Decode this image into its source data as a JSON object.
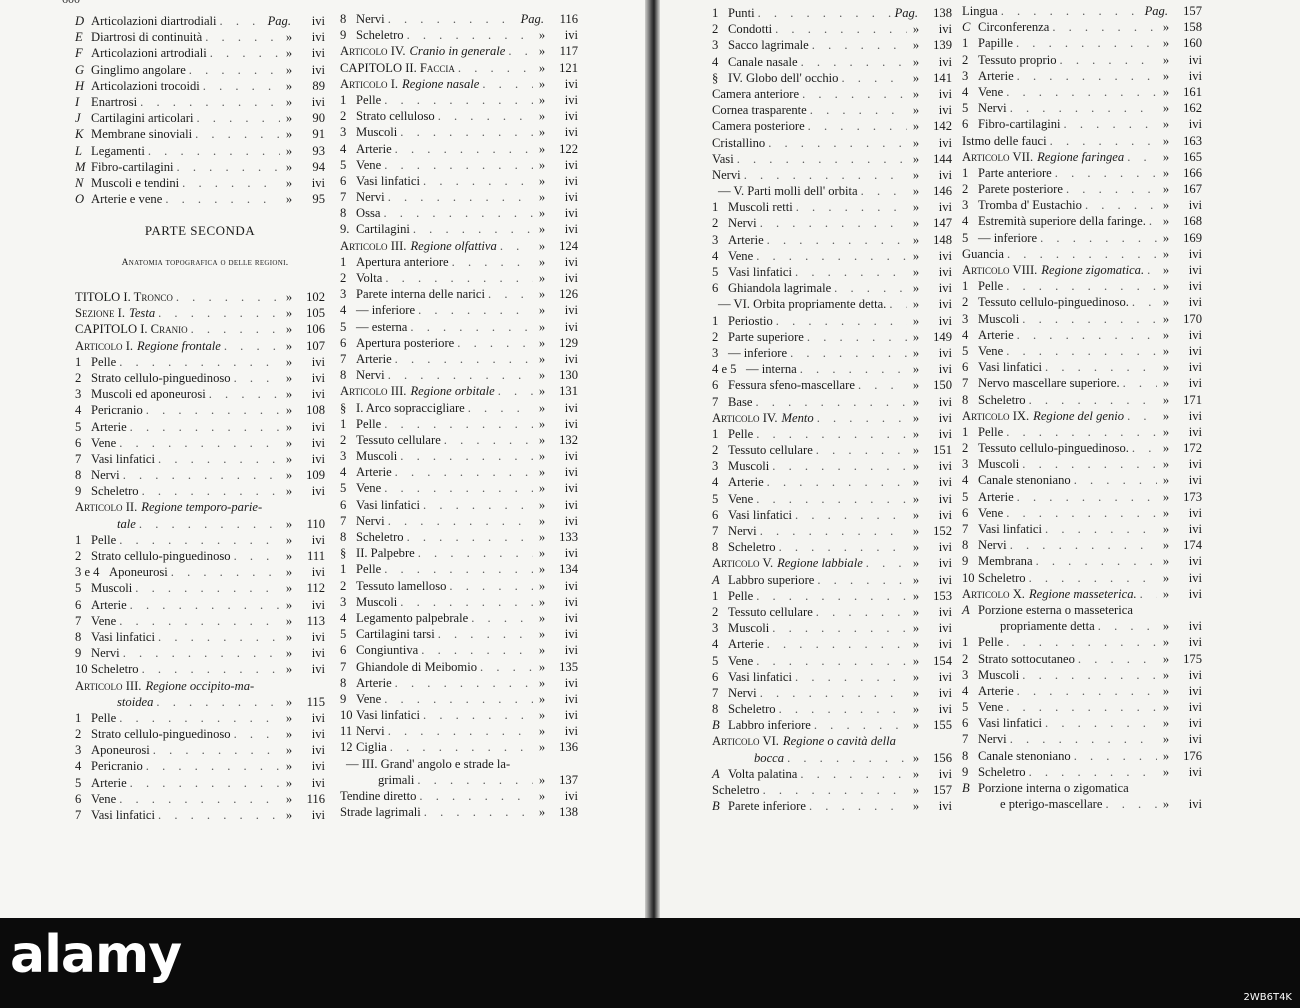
{
  "ditto_mark": "»",
  "left_page": {
    "running_number": "600",
    "part_title": "PARTE SECONDA",
    "part_subtitle": "Anatomia topografica o delle regioni.",
    "col1_top": [
      {
        "n": "D",
        "t": "Articolazioni diartrodiali",
        "pre": "Pag.",
        "p": "ivi"
      },
      {
        "n": "E",
        "t": "Diartrosi di continuità",
        "p": "ivi"
      },
      {
        "n": "F",
        "t": "Articolazioni artrodiali",
        "p": "ivi"
      },
      {
        "n": "G",
        "t": "Ginglimo angolare",
        "p": "ivi"
      },
      {
        "n": "H",
        "t": "Articolazioni trocoidi",
        "p": "89"
      },
      {
        "n": "I",
        "t": "Enartrosi",
        "p": "ivi"
      },
      {
        "n": "J",
        "t": "Cartilagini articolari",
        "p": "90"
      },
      {
        "n": "K",
        "t": "Membrane sinoviali",
        "p": "91"
      },
      {
        "n": "L",
        "t": "Legamenti",
        "p": "93"
      },
      {
        "n": "M",
        "t": "Fibro-cartilagini",
        "p": "94"
      },
      {
        "n": "N",
        "t": "Muscoli e tendini",
        "p": "ivi"
      },
      {
        "n": "O",
        "t": "Arterie e vene",
        "p": "95"
      }
    ],
    "col1_bottom": [
      {
        "k": "a",
        "t": "TITOLO I. Tronco",
        "p": "102"
      },
      {
        "k": "a",
        "t": "Sezione I.",
        "i": "Testa",
        "p": "105"
      },
      {
        "k": "a",
        "t": "CAPITOLO I. Cranio",
        "p": "106"
      },
      {
        "k": "a",
        "t": "Articolo I.",
        "i": "Regione frontale",
        "p": "107"
      },
      {
        "n": "1",
        "t": "Pelle",
        "p": "ivi"
      },
      {
        "n": "2",
        "t": "Strato cellulo-pinguedinoso",
        "p": "ivi"
      },
      {
        "n": "3",
        "t": "Muscoli ed aponeurosi",
        "p": "ivi"
      },
      {
        "n": "4",
        "t": "Pericranio",
        "p": "108"
      },
      {
        "n": "5",
        "t": "Arterie",
        "p": "ivi"
      },
      {
        "n": "6",
        "t": "Vene",
        "p": "ivi"
      },
      {
        "n": "7",
        "t": "Vasi linfatici",
        "p": "ivi"
      },
      {
        "n": "8",
        "t": "Nervi",
        "p": "109"
      },
      {
        "n": "9",
        "t": "Scheletro",
        "p": "ivi"
      },
      {
        "k": "a",
        "t": "Articolo II.",
        "i": "Regione temporo-parie-"
      },
      {
        "k": "c",
        "i": "tale",
        "p": "110"
      },
      {
        "n": "1",
        "t": "Pelle",
        "p": "ivi"
      },
      {
        "n": "2",
        "t": "Strato cellulo-pinguedinoso",
        "p": "111"
      },
      {
        "n": "3 e 4",
        "t": "Aponeurosi",
        "p": "ivi"
      },
      {
        "n": "5",
        "t": "Muscoli",
        "p": "112"
      },
      {
        "n": "6",
        "t": "Arterie",
        "p": "ivi"
      },
      {
        "n": "7",
        "t": "Vene",
        "p": "113"
      },
      {
        "n": "8",
        "t": "Vasi linfatici",
        "p": "ivi"
      },
      {
        "n": "9",
        "t": "Nervi",
        "p": "ivi"
      },
      {
        "n": "10",
        "t": "Scheletro",
        "p": "ivi"
      },
      {
        "k": "a",
        "t": "Articolo III.",
        "i": "Regione occipito-ma-"
      },
      {
        "k": "c",
        "i": "stoidea",
        "p": "115"
      },
      {
        "n": "1",
        "t": "Pelle",
        "p": "ivi"
      },
      {
        "n": "2",
        "t": "Strato cellulo-pinguedinoso",
        "p": "ivi"
      },
      {
        "n": "3",
        "t": "Aponeurosi",
        "p": "ivi"
      },
      {
        "n": "4",
        "t": "Pericranio",
        "p": "ivi"
      },
      {
        "n": "5",
        "t": "Arterie",
        "p": "ivi"
      },
      {
        "n": "6",
        "t": "Vene",
        "p": "116"
      },
      {
        "n": "7",
        "t": "Vasi linfatici",
        "p": "ivi"
      }
    ],
    "col2": [
      {
        "n": "8",
        "t": "Nervi",
        "pre": "Pag.",
        "p": "116"
      },
      {
        "n": "9",
        "t": "Scheletro",
        "p": "ivi"
      },
      {
        "k": "a",
        "t": "Articolo IV.",
        "i": "Cranio in generale",
        "p": "117"
      },
      {
        "k": "a",
        "t": "CAPITOLO II. Faccia",
        "p": "121"
      },
      {
        "k": "a",
        "t": "Articolo I.",
        "i": "Regione nasale",
        "p": "ivi"
      },
      {
        "n": "1",
        "t": "Pelle",
        "p": "ivi"
      },
      {
        "n": "2",
        "t": "Strato celluloso",
        "p": "ivi"
      },
      {
        "n": "3",
        "t": "Muscoli",
        "p": "ivi"
      },
      {
        "n": "4",
        "t": "Arterie",
        "p": "122"
      },
      {
        "n": "5",
        "t": "Vene",
        "p": "ivi"
      },
      {
        "n": "6",
        "t": "Vasi linfatici",
        "p": "ivi"
      },
      {
        "n": "7",
        "t": "Nervi",
        "p": "ivi"
      },
      {
        "n": "8",
        "t": "Ossa",
        "p": "ivi"
      },
      {
        "n": "9.",
        "t": "Cartilagini",
        "p": "ivi"
      },
      {
        "k": "a",
        "t": "Articolo III.",
        "i": "Regione olfattiva",
        "p": "124"
      },
      {
        "n": "1",
        "t": "Apertura anteriore",
        "p": "ivi"
      },
      {
        "n": "2",
        "t": "Volta",
        "p": "ivi"
      },
      {
        "n": "3",
        "t": "Parete interna delle narici",
        "p": "126"
      },
      {
        "n": "4",
        "t": "— inferiore",
        "p": "ivi"
      },
      {
        "n": "5",
        "t": "— esterna",
        "p": "ivi"
      },
      {
        "n": "6",
        "t": "Apertura posteriore",
        "p": "129"
      },
      {
        "n": "7",
        "t": "Arterie",
        "p": "ivi"
      },
      {
        "n": "8",
        "t": "Nervi",
        "p": "130"
      },
      {
        "k": "a",
        "t": "Articolo III.",
        "i": "Regione orbitale",
        "p": "131"
      },
      {
        "n": "§",
        "t": "I. Arco sopraccigliare",
        "p": "ivi"
      },
      {
        "n": "1",
        "t": "Pelle",
        "p": "ivi"
      },
      {
        "n": "2",
        "t": "Tessuto cellulare",
        "p": "132"
      },
      {
        "n": "3",
        "t": "Muscoli",
        "p": "ivi"
      },
      {
        "n": "4",
        "t": "Arterie",
        "p": "ivi"
      },
      {
        "n": "5",
        "t": "Vene",
        "p": "ivi"
      },
      {
        "n": "6",
        "t": "Vasi linfatici",
        "p": "ivi"
      },
      {
        "n": "7",
        "t": "Nervi",
        "p": "ivi"
      },
      {
        "n": "8",
        "t": "Scheletro",
        "p": "133"
      },
      {
        "n": "§",
        "t": "II. Palpebre",
        "p": "ivi"
      },
      {
        "n": "1",
        "t": "Pelle",
        "p": "134"
      },
      {
        "n": "2",
        "t": "Tessuto lamelloso",
        "p": "ivi"
      },
      {
        "n": "3",
        "t": "Muscoli",
        "p": "ivi"
      },
      {
        "n": "4",
        "t": "Legamento palpebrale",
        "p": "ivi"
      },
      {
        "n": "5",
        "t": "Cartilagini tarsi",
        "p": "ivi"
      },
      {
        "n": "6",
        "t": "Congiuntiva",
        "p": "ivi"
      },
      {
        "n": "7",
        "t": "Ghiandole di Meibomio",
        "p": "135"
      },
      {
        "n": "8",
        "t": "Arterie",
        "p": "ivi"
      },
      {
        "n": "9",
        "t": "Vene",
        "p": "ivi"
      },
      {
        "n": "10",
        "t": "Vasi linfatici",
        "p": "ivi"
      },
      {
        "n": "11",
        "t": "Nervi",
        "p": "ivi"
      },
      {
        "n": "12",
        "t": "Ciglia",
        "p": "136"
      },
      {
        "k": "i",
        "t": "— III. Grand' angolo e strade la-"
      },
      {
        "k": "c",
        "t": "grimali",
        "p": "137"
      },
      {
        "k": "s",
        "t": "Tendine diretto",
        "p": "ivi"
      },
      {
        "k": "s",
        "t": "Strade lagrimali",
        "p": "138"
      }
    ]
  },
  "right_page": {
    "col3": [
      {
        "n": "1",
        "t": "Punti",
        "pre": "Pag.",
        "p": "138"
      },
      {
        "n": "2",
        "t": "Condotti",
        "p": "ivi"
      },
      {
        "n": "3",
        "t": "Sacco lagrimale",
        "p": "139"
      },
      {
        "n": "4",
        "t": "Canale nasale",
        "p": "ivi"
      },
      {
        "n": "§",
        "t": "IV. Globo dell' occhio",
        "p": "141"
      },
      {
        "k": "s",
        "t": "Camera anteriore",
        "p": "ivi"
      },
      {
        "k": "s",
        "t": "Cornea trasparente",
        "p": "ivi"
      },
      {
        "k": "s",
        "t": "Camera posteriore",
        "p": "142"
      },
      {
        "k": "s",
        "t": "Cristallino",
        "p": "ivi"
      },
      {
        "k": "s",
        "t": "Vasi",
        "p": "144"
      },
      {
        "k": "s",
        "t": "Nervi",
        "p": "ivi"
      },
      {
        "k": "i",
        "t": "— V. Parti molli dell' orbita",
        "p": "146"
      },
      {
        "n": "1",
        "t": "Muscoli retti",
        "p": "ivi"
      },
      {
        "n": "2",
        "t": "Nervi",
        "p": "147"
      },
      {
        "n": "3",
        "t": "Arterie",
        "p": "148"
      },
      {
        "n": "4",
        "t": "Vene",
        "p": "ivi"
      },
      {
        "n": "5",
        "t": "Vasi linfatici",
        "p": "ivi"
      },
      {
        "n": "6",
        "t": "Ghiandola lagrimale",
        "p": "ivi"
      },
      {
        "k": "i",
        "t": "— VI. Orbita propriamente detta.",
        "p": "ivi"
      },
      {
        "n": "1",
        "t": "Periostio",
        "p": "ivi"
      },
      {
        "n": "2",
        "t": "Parte superiore",
        "p": "149"
      },
      {
        "n": "3",
        "t": "— inferiore",
        "p": "ivi"
      },
      {
        "n": "4 e 5",
        "t": "— interna",
        "p": "ivi"
      },
      {
        "n": "6",
        "t": "Fessura sfeno-mascellare",
        "p": "150"
      },
      {
        "n": "7",
        "t": "Base",
        "p": "ivi"
      },
      {
        "k": "a",
        "t": "Articolo IV.",
        "i": "Mento",
        "p": "ivi"
      },
      {
        "n": "1",
        "t": "Pelle",
        "p": "ivi"
      },
      {
        "n": "2",
        "t": "Tessuto cellulare",
        "p": "151"
      },
      {
        "n": "3",
        "t": "Muscoli",
        "p": "ivi"
      },
      {
        "n": "4",
        "t": "Arterie",
        "p": "ivi"
      },
      {
        "n": "5",
        "t": "Vene",
        "p": "ivi"
      },
      {
        "n": "6",
        "t": "Vasi linfatici",
        "p": "ivi"
      },
      {
        "n": "7",
        "t": "Nervi",
        "p": "152"
      },
      {
        "n": "8",
        "t": "Scheletro",
        "p": "ivi"
      },
      {
        "k": "a",
        "t": "Articolo V.",
        "i": "Regione labbiale",
        "p": "ivi"
      },
      {
        "n": "A",
        "t": "Labbro superiore",
        "p": "ivi"
      },
      {
        "n": "1",
        "t": "Pelle",
        "p": "153"
      },
      {
        "n": "2",
        "t": "Tessuto cellulare",
        "p": "ivi"
      },
      {
        "n": "3",
        "t": "Muscoli",
        "p": "ivi"
      },
      {
        "n": "4",
        "t": "Arterie",
        "p": "ivi"
      },
      {
        "n": "5",
        "t": "Vene",
        "p": "154"
      },
      {
        "n": "6",
        "t": "Vasi linfatici",
        "p": "ivi"
      },
      {
        "n": "7",
        "t": "Nervi",
        "p": "ivi"
      },
      {
        "n": "8",
        "t": "Scheletro",
        "p": "ivi"
      },
      {
        "n": "B",
        "t": "Labbro inferiore",
        "p": "155"
      },
      {
        "k": "a",
        "t": "Articolo VI.",
        "i": "Regione o cavità della"
      },
      {
        "k": "c",
        "i": "bocca",
        "p": "156"
      },
      {
        "n": "A",
        "t": "Volta palatina",
        "p": "ivi"
      },
      {
        "k": "s",
        "t": "Scheletro",
        "p": "157"
      },
      {
        "n": "B",
        "t": "Parete inferiore",
        "p": "ivi"
      }
    ],
    "col4": [
      {
        "k": "s",
        "t": "Lingua",
        "pre": "Pag.",
        "p": "157"
      },
      {
        "n": "C",
        "t": "Circonferenza",
        "p": "158"
      },
      {
        "n": "1",
        "t": "Papille",
        "p": "160"
      },
      {
        "n": "2",
        "t": "Tessuto proprio",
        "p": "ivi"
      },
      {
        "n": "3",
        "t": "Arterie",
        "p": "ivi"
      },
      {
        "n": "4",
        "t": "Vene",
        "p": "161"
      },
      {
        "n": "5",
        "t": "Nervi",
        "p": "162"
      },
      {
        "n": "6",
        "t": "Fibro-cartilagini",
        "p": "ivi"
      },
      {
        "k": "s",
        "t": "Istmo delle fauci",
        "p": "163"
      },
      {
        "k": "a",
        "t": "Articolo VII.",
        "i": "Regione faringea",
        "p": "165"
      },
      {
        "n": "1",
        "t": "Parte anteriore",
        "p": "166"
      },
      {
        "n": "2",
        "t": "Parete posteriore",
        "p": "167"
      },
      {
        "n": "3",
        "t": "Tromba d' Eustachio",
        "p": "ivi"
      },
      {
        "n": "4",
        "t": "Estremità superiore della faringe.",
        "p": "168"
      },
      {
        "n": "5",
        "t": "— inferiore",
        "p": "169"
      },
      {
        "k": "s",
        "t": "Guancia",
        "p": "ivi"
      },
      {
        "k": "a",
        "t": "Articolo VIII.",
        "i": "Regione zigomatica.",
        "p": "ivi"
      },
      {
        "n": "1",
        "t": "Pelle",
        "p": "ivi"
      },
      {
        "n": "2",
        "t": "Tessuto cellulo-pinguedinoso.",
        "p": "ivi"
      },
      {
        "n": "3",
        "t": "Muscoli",
        "p": "170"
      },
      {
        "n": "4",
        "t": "Arterie",
        "p": "ivi"
      },
      {
        "n": "5",
        "t": "Vene",
        "p": "ivi"
      },
      {
        "n": "6",
        "t": "Vasi linfatici",
        "p": "ivi"
      },
      {
        "n": "7",
        "t": "Nervo mascellare superiore.",
        "p": "ivi"
      },
      {
        "n": "8",
        "t": "Scheletro",
        "p": "171"
      },
      {
        "k": "a",
        "t": "Articolo IX.",
        "i": "Regione del genio",
        "p": "ivi"
      },
      {
        "n": "1",
        "t": "Pelle",
        "p": "ivi"
      },
      {
        "n": "2",
        "t": "Tessuto cellulo-pinguedinoso.",
        "p": "172"
      },
      {
        "n": "3",
        "t": "Muscoli",
        "p": "ivi"
      },
      {
        "n": "4",
        "t": "Canale stenoniano",
        "p": "ivi"
      },
      {
        "n": "5",
        "t": "Arterie",
        "p": "173"
      },
      {
        "n": "6",
        "t": "Vene",
        "p": "ivi"
      },
      {
        "n": "7",
        "t": "Vasi linfatici",
        "p": "ivi"
      },
      {
        "n": "8",
        "t": "Nervi",
        "p": "174"
      },
      {
        "n": "9",
        "t": "Membrana",
        "p": "ivi"
      },
      {
        "n": "10",
        "t": "Scheletro",
        "p": "ivi"
      },
      {
        "k": "a",
        "t": "Articolo X.",
        "i": "Regione masseterica.",
        "p": "ivi"
      },
      {
        "n": "A",
        "t": "Porzione esterna o masseterica"
      },
      {
        "k": "c",
        "t": "propriamente detta",
        "p": "ivi"
      },
      {
        "n": "1",
        "t": "Pelle",
        "p": "ivi"
      },
      {
        "n": "2",
        "t": "Strato sottocutaneo",
        "p": "175"
      },
      {
        "n": "3",
        "t": "Muscoli",
        "p": "ivi"
      },
      {
        "n": "4",
        "t": "Arterie",
        "p": "ivi"
      },
      {
        "n": "5",
        "t": "Vene",
        "p": "ivi"
      },
      {
        "n": "6",
        "t": "Vasi linfatici",
        "p": "ivi"
      },
      {
        "n": "7",
        "t": "Nervi",
        "p": "ivi"
      },
      {
        "n": "8",
        "t": "Canale stenoniano",
        "p": "176"
      },
      {
        "n": "9",
        "t": "Scheletro",
        "p": "ivi"
      },
      {
        "n": "B",
        "t": "Porzione interna o zigomatica"
      },
      {
        "k": "c",
        "t": "e pterigo-mascellare",
        "p": "ivi"
      }
    ]
  },
  "watermark": {
    "logo": "alamy",
    "image_id": "2WB6T4K"
  }
}
